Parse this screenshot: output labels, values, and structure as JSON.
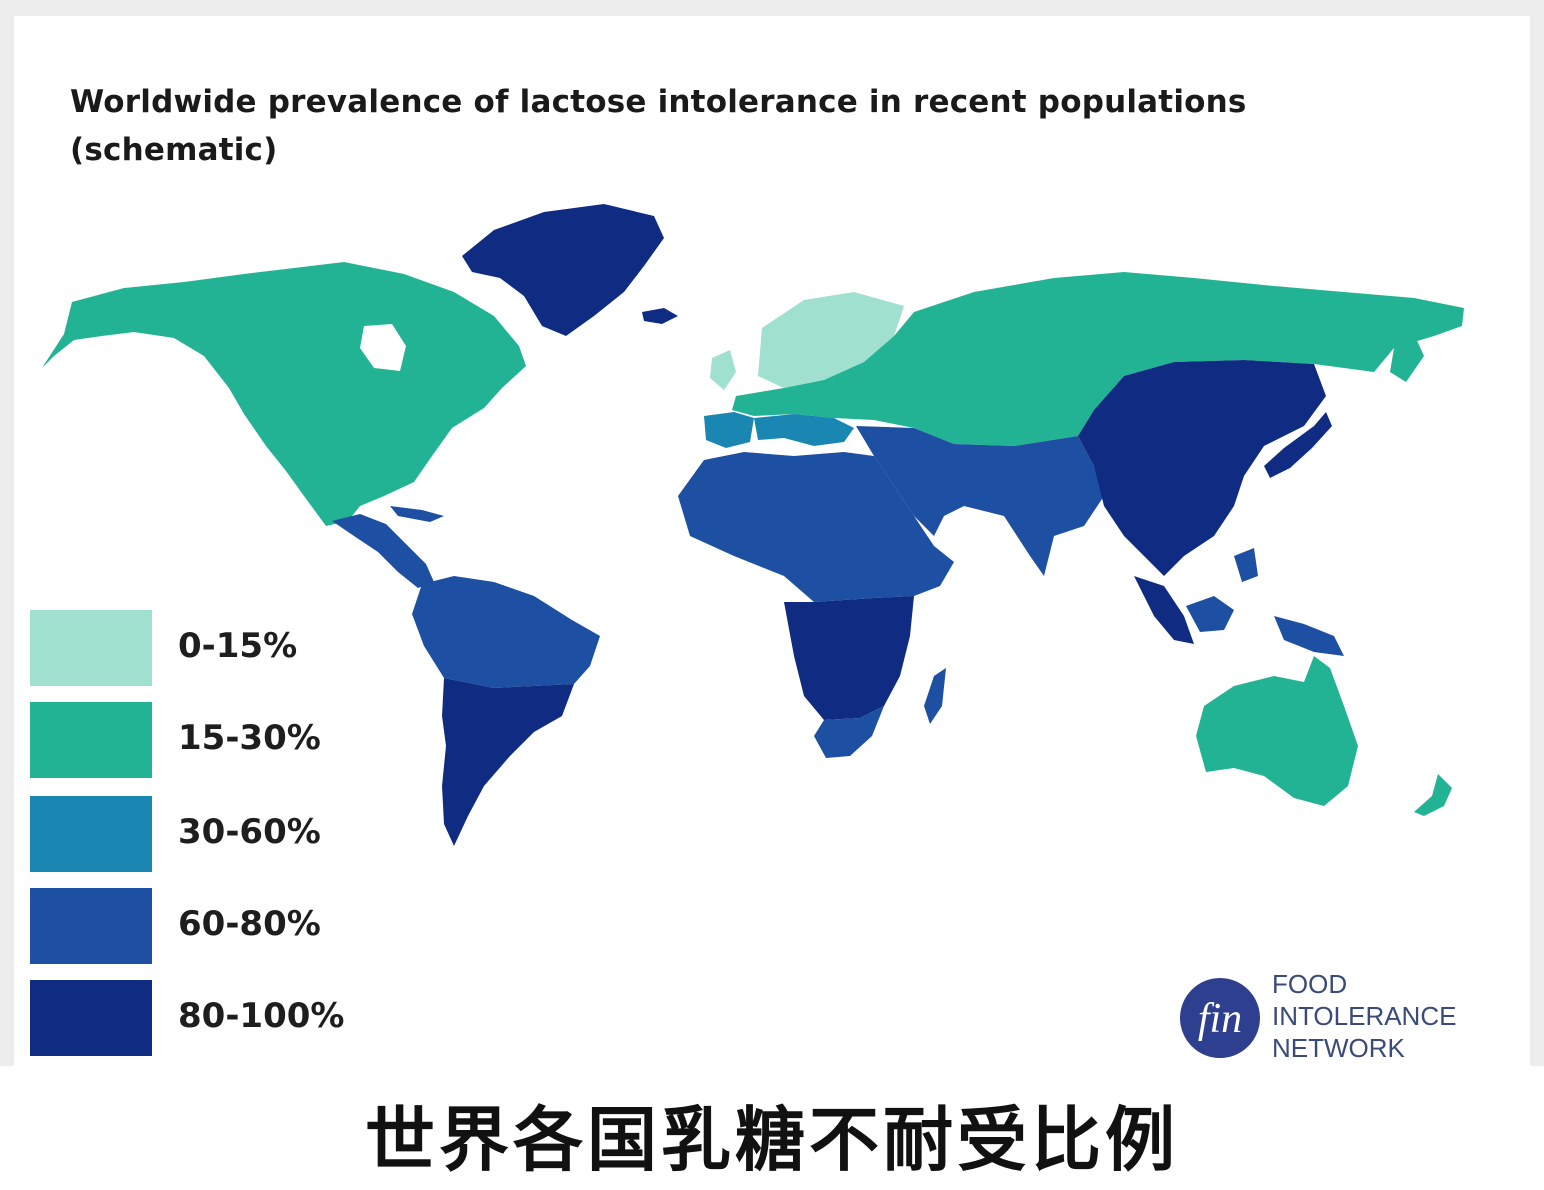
{
  "title_line1": "Worldwide prevalence of lactose intolerance in recent populations",
  "title_line2": "(schematic)",
  "legend": [
    {
      "label": "0-15%",
      "color": "#9fe0cf"
    },
    {
      "label": "15-30%",
      "color": "#22b394"
    },
    {
      "label": "30-60%",
      "color": "#1a87b3"
    },
    {
      "label": "60-80%",
      "color": "#1d4fa2"
    },
    {
      "label": "80-100%",
      "color": "#0f2c82"
    }
  ],
  "logo": {
    "mark": "fin",
    "line1": "FOOD",
    "line2": "INTOLERANCE",
    "line3": "NETWORK"
  },
  "caption": "世界各国乳糖不耐受比例"
}
